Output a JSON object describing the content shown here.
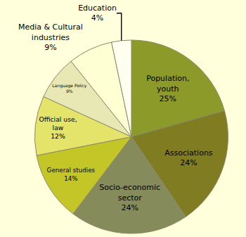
{
  "chart_data": {
    "type": "pie",
    "categories": [
      "Population, youth",
      "Associations",
      "Socio-economic sector",
      "General studies",
      "Official use, law",
      "Language Policy",
      "Media & Cultural industries",
      "Education"
    ],
    "values": [
      25,
      24,
      24,
      14,
      12,
      9,
      9,
      4
    ],
    "value_labels": [
      "25%",
      "24%",
      "24%",
      "14%",
      "12%",
      "9%",
      "9%",
      "4%"
    ],
    "colors": [
      "#8c9a2a",
      "#7f7c22",
      "#868b5c",
      "#c4c628",
      "#e4e46a",
      "#e8e8b4",
      "#ffffd4",
      "#fffff0"
    ],
    "data_labels": true
  }
}
